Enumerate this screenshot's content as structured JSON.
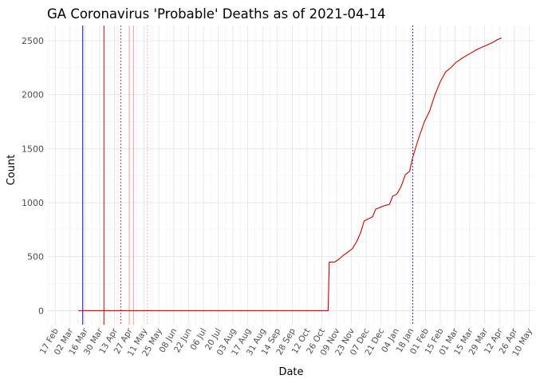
{
  "chart_data": {
    "type": "line",
    "title": "GA Coronavirus 'Probable' Deaths as of 2021-04-14",
    "xlabel": "Date",
    "ylabel": "Count",
    "ylim": [
      -130,
      2640
    ],
    "xlim": [
      "2020-02-10",
      "2021-05-15"
    ],
    "yticks": [
      0,
      500,
      1000,
      1500,
      2000,
      2500
    ],
    "xticks": [
      "17 Feb",
      "02 Mar",
      "16 Mar",
      "30 Mar",
      "13 Apr",
      "27 Apr",
      "11 May",
      "25 May",
      "08 Jun",
      "22 Jun",
      "06 Jul",
      "20 Jul",
      "03 Aug",
      "17 Aug",
      "31 Aug",
      "14 Sep",
      "28 Sep",
      "12 Oct",
      "26 Oct",
      "09 Nov",
      "23 Nov",
      "07 Dec",
      "21 Dec",
      "04 Jan",
      "18 Jan",
      "01 Feb",
      "15 Feb",
      "01 Mar",
      "15 Mar",
      "29 Mar",
      "12 Apr",
      "26 Apr",
      "10 May"
    ],
    "xtick_dates": [
      "2020-02-17",
      "2020-03-02",
      "2020-03-16",
      "2020-03-30",
      "2020-04-13",
      "2020-04-27",
      "2020-05-11",
      "2020-05-25",
      "2020-06-08",
      "2020-06-22",
      "2020-07-06",
      "2020-07-20",
      "2020-08-03",
      "2020-08-17",
      "2020-08-31",
      "2020-09-14",
      "2020-09-28",
      "2020-10-12",
      "2020-10-26",
      "2020-11-09",
      "2020-11-23",
      "2020-12-07",
      "2020-12-21",
      "2021-01-04",
      "2021-01-18",
      "2021-02-01",
      "2021-02-15",
      "2021-03-01",
      "2021-03-15",
      "2021-03-29",
      "2021-04-12",
      "2021-04-26",
      "2021-05-10"
    ],
    "grid": true,
    "reference_lines": [
      {
        "date": "2020-03-14",
        "color": "#0000cd",
        "style": "solid"
      },
      {
        "date": "2020-04-03",
        "color": "#cc0000",
        "style": "solid"
      },
      {
        "date": "2020-04-19",
        "color": "#cc0000",
        "style": "dotted"
      },
      {
        "date": "2020-04-27",
        "color": "#ff9999",
        "style": "solid"
      },
      {
        "date": "2020-05-01",
        "color": "#ff9999",
        "style": "solid"
      },
      {
        "date": "2020-05-14",
        "color": "#ff9999",
        "style": "dotted"
      },
      {
        "date": "2021-01-20",
        "color": "#00008b",
        "style": "dotted"
      }
    ],
    "series": [
      {
        "color": "#cc0000",
        "points": [
          [
            "2020-03-10",
            0
          ],
          [
            "2020-11-01",
            0
          ],
          [
            "2020-11-02",
            450
          ],
          [
            "2020-11-07",
            450
          ],
          [
            "2020-11-11",
            475
          ],
          [
            "2020-11-15",
            510
          ],
          [
            "2020-11-20",
            545
          ],
          [
            "2020-11-24",
            575
          ],
          [
            "2020-11-28",
            640
          ],
          [
            "2020-12-02",
            730
          ],
          [
            "2020-12-05",
            830
          ],
          [
            "2020-12-09",
            850
          ],
          [
            "2020-12-13",
            870
          ],
          [
            "2020-12-16",
            940
          ],
          [
            "2020-12-21",
            960
          ],
          [
            "2020-12-25",
            975
          ],
          [
            "2020-12-29",
            985
          ],
          [
            "2021-01-01",
            1060
          ],
          [
            "2021-01-05",
            1080
          ],
          [
            "2021-01-09",
            1150
          ],
          [
            "2021-01-13",
            1260
          ],
          [
            "2021-01-17",
            1290
          ],
          [
            "2021-01-20",
            1420
          ],
          [
            "2021-01-25",
            1580
          ],
          [
            "2021-01-31",
            1750
          ],
          [
            "2021-02-05",
            1850
          ],
          [
            "2021-02-10",
            2000
          ],
          [
            "2021-02-15",
            2120
          ],
          [
            "2021-02-20",
            2210
          ],
          [
            "2021-02-25",
            2250
          ],
          [
            "2021-03-02",
            2300
          ],
          [
            "2021-03-08",
            2340
          ],
          [
            "2021-03-15",
            2380
          ],
          [
            "2021-03-22",
            2420
          ],
          [
            "2021-03-29",
            2450
          ],
          [
            "2021-04-05",
            2480
          ],
          [
            "2021-04-10",
            2510
          ],
          [
            "2021-04-14",
            2525
          ]
        ]
      }
    ]
  }
}
